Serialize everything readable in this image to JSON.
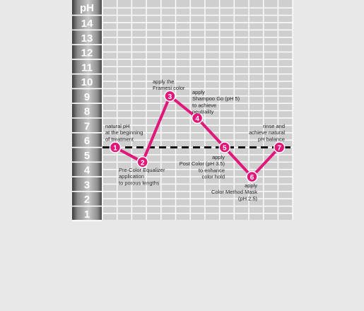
{
  "chart_data": {
    "type": "line",
    "title": "",
    "xlabel": "",
    "ylabel": "pH",
    "ylim": [
      0.5,
      15
    ],
    "y_ticks": [
      1,
      2,
      3,
      4,
      5,
      6,
      7,
      8,
      9,
      10,
      11,
      12,
      13,
      14
    ],
    "grid": true,
    "reference_line": {
      "y": 5.5,
      "style": "dashed"
    },
    "line_color": "#e0187a",
    "point_color": "#e0187a",
    "points": [
      {
        "step": "1",
        "x": 1,
        "y": 5.5,
        "note": [
          "natural pH",
          "at the beginning",
          "of treatment"
        ]
      },
      {
        "step": "2",
        "x": 2,
        "y": 4.5,
        "note": [
          "Pre-Color Equalizer",
          "application",
          "to porous lengths"
        ]
      },
      {
        "step": "3",
        "x": 3,
        "y": 9,
        "note": [
          "apply the",
          "Framesi color"
        ]
      },
      {
        "step": "4",
        "x": 4,
        "y": 7.5,
        "note": [
          "apply",
          "Shampoo Go (pH 5)",
          "to achieve",
          "neutrality"
        ]
      },
      {
        "step": "5",
        "x": 5,
        "y": 5.5,
        "note": [
          "apply",
          "Post Color (pH 3.5)",
          "to enhance",
          "color hold"
        ]
      },
      {
        "step": "6",
        "x": 6,
        "y": 3.5,
        "note": [
          "apply",
          "Color Method Mask",
          "(pH 2.5)"
        ]
      },
      {
        "step": "7",
        "x": 7,
        "y": 5.5,
        "note": [
          "rinse and",
          "achieve natural",
          "pH balance"
        ]
      }
    ]
  }
}
